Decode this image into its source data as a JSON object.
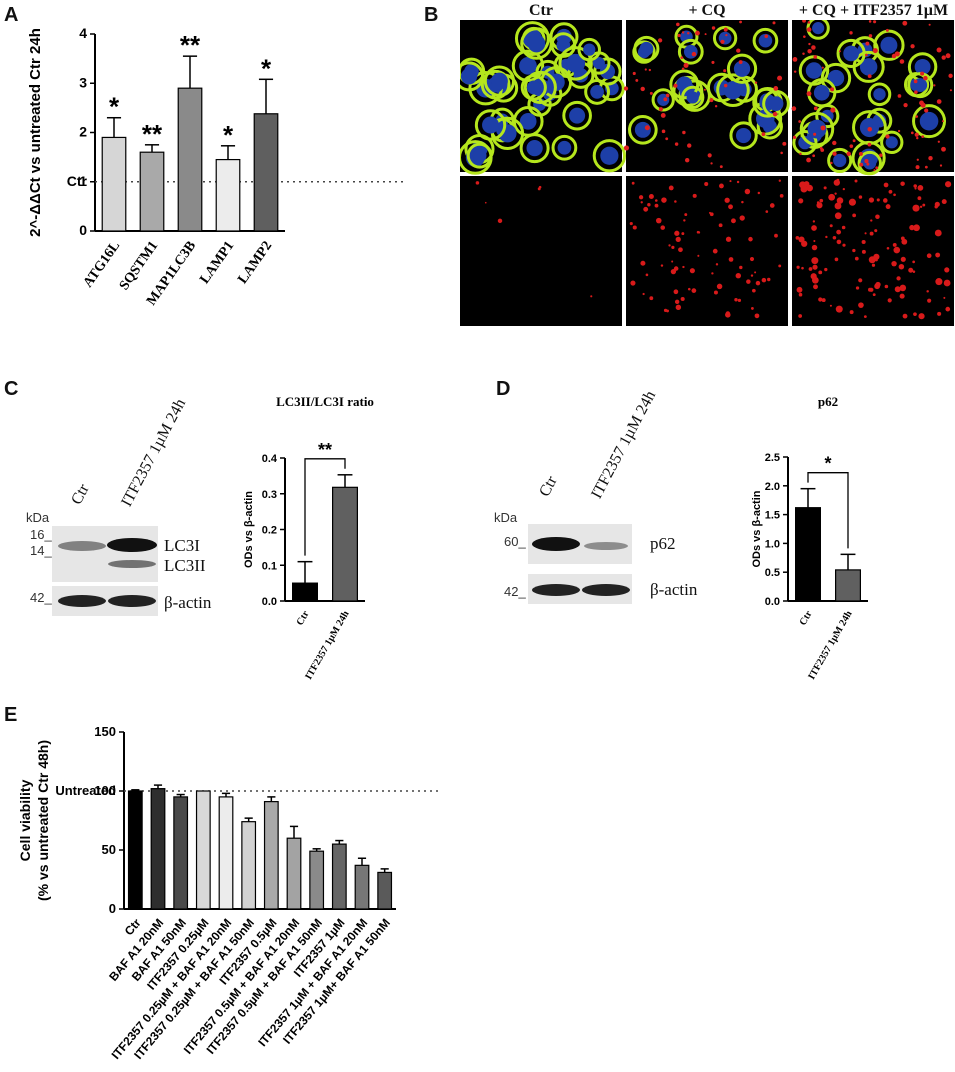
{
  "panels": {
    "a": "A",
    "b": "B",
    "c": "C",
    "d": "D",
    "e": "E"
  },
  "panel_b": {
    "titles": [
      "Ctr",
      "+ CQ",
      "+ CQ + ITF2357 1µM"
    ]
  },
  "panel_c": {
    "kda": "kDa",
    "lanes": [
      "Ctr",
      "ITF2357 1µM 24h"
    ],
    "markers": [
      "16_",
      "14_",
      "42_"
    ],
    "bands": [
      "LC3I",
      "LC3II",
      "β-actin"
    ]
  },
  "panel_d": {
    "kda": "kDa",
    "lanes": [
      "Ctr",
      "ITF2357 1µM 24h"
    ],
    "markers": [
      "60_",
      "42_"
    ],
    "bands": [
      "p62",
      "β-actin"
    ]
  },
  "chart_data": [
    {
      "id": "A",
      "type": "bar",
      "ylabel": "2^-ΔΔCt vs untreated Ctr 24h",
      "categories": [
        "ATG16L",
        "SQSTM1",
        "MAP1LC3B",
        "LAMP1",
        "LAMP2"
      ],
      "values": [
        1.9,
        1.6,
        2.9,
        1.45,
        2.38
      ],
      "errors": [
        0.4,
        0.15,
        0.65,
        0.28,
        0.7
      ],
      "significance": [
        "*",
        "**",
        "**",
        "*",
        "*"
      ],
      "colors": [
        "#d6d6d6",
        "#a9a9a9",
        "#8a8a8a",
        "#ececec",
        "#5f5f5f"
      ],
      "ylim": [
        0,
        4
      ],
      "yticks": [
        "0",
        "1",
        "2",
        "3",
        "4"
      ],
      "reference_line": {
        "value": 1,
        "label": "Ctr"
      }
    },
    {
      "id": "C",
      "type": "bar",
      "title": "LC3II/LC3I ratio",
      "ylabel": "ODs vs β-actin",
      "categories": [
        "Ctr",
        "ITF2357 1µM 24h"
      ],
      "values": [
        0.05,
        0.318
      ],
      "errors": [
        0.06,
        0.035
      ],
      "colors": [
        "#000000",
        "#606060"
      ],
      "significance": "**",
      "ylim": [
        0,
        0.4
      ],
      "yticks": [
        "0.0",
        "0.1",
        "0.2",
        "0.3",
        "0.4"
      ]
    },
    {
      "id": "D",
      "type": "bar",
      "title": "p62",
      "ylabel": "ODs vs β-actin",
      "categories": [
        "Ctr",
        "ITF2357 1µM 24h"
      ],
      "values": [
        1.62,
        0.54
      ],
      "errors": [
        0.33,
        0.27
      ],
      "colors": [
        "#000000",
        "#606060"
      ],
      "significance": "*",
      "ylim": [
        0,
        2.5
      ],
      "yticks": [
        "0.0",
        "0.5",
        "1.0",
        "1.5",
        "2.0",
        "2.5"
      ]
    },
    {
      "id": "E",
      "type": "bar",
      "ylabel": "Cell viability",
      "ylabel2": "(% vs untreated Ctr 48h)",
      "categories": [
        "Ctr",
        "BAF A1 20nM",
        "BAF A1 50nM",
        "ITF2357 0.25µM",
        "ITF2357 0.25µM + BAF A1 20nM",
        "ITF2357 0.25µM + BAF A1 50nM",
        "ITF2357 0.5µM",
        "ITF2357 0.5µM + BAF A1 20nM",
        "ITF2357 0.5µM + BAF A1 50nM",
        "ITF2357 1µM",
        "ITF2357 1µM + BAF A1 20nM",
        "ITF2357 1µM+ BAF A1 50nM"
      ],
      "values": [
        100,
        102,
        95,
        100,
        95,
        74,
        91,
        60,
        49,
        55,
        37,
        31
      ],
      "errors": [
        1,
        3,
        2,
        0,
        3,
        3,
        4,
        10,
        2,
        3,
        6,
        3
      ],
      "colors": [
        "#000000",
        "#2e2e2e",
        "#4a4a4a",
        "#d8d8d8",
        "#ececec",
        "#d2d2d2",
        "#a9a9a9",
        "#a3a3a3",
        "#8a8a8a",
        "#666666",
        "#777777",
        "#5a5a5a"
      ],
      "ylim": [
        0,
        150
      ],
      "yticks": [
        "0",
        "50",
        "100",
        "150"
      ],
      "reference_line": {
        "value": 100,
        "label": "Untreated"
      }
    }
  ]
}
